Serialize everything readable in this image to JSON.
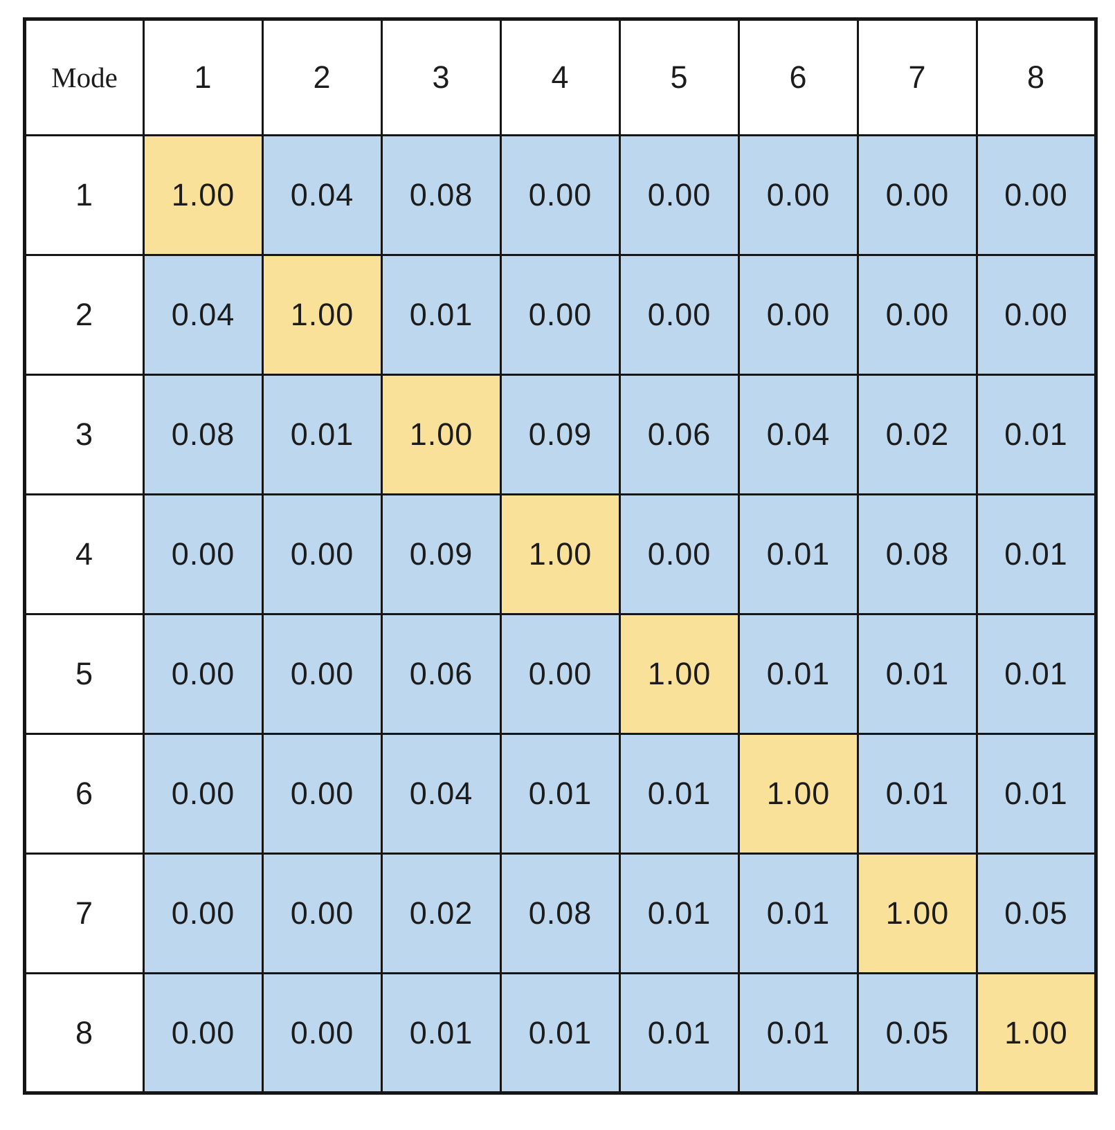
{
  "table": {
    "corner_label": "Mode",
    "column_headers": [
      "1",
      "2",
      "3",
      "4",
      "5",
      "6",
      "7",
      "8"
    ],
    "row_headers": [
      "1",
      "2",
      "3",
      "4",
      "5",
      "6",
      "7",
      "8"
    ],
    "cells": [
      [
        "1.00",
        "0.04",
        "0.08",
        "0.00",
        "0.00",
        "0.00",
        "0.00",
        "0.00"
      ],
      [
        "0.04",
        "1.00",
        "0.01",
        "0.00",
        "0.00",
        "0.00",
        "0.00",
        "0.00"
      ],
      [
        "0.08",
        "0.01",
        "1.00",
        "0.09",
        "0.06",
        "0.04",
        "0.02",
        "0.01"
      ],
      [
        "0.00",
        "0.00",
        "0.09",
        "1.00",
        "0.00",
        "0.01",
        "0.08",
        "0.01"
      ],
      [
        "0.00",
        "0.00",
        "0.06",
        "0.00",
        "1.00",
        "0.01",
        "0.01",
        "0.01"
      ],
      [
        "0.00",
        "0.00",
        "0.04",
        "0.01",
        "0.01",
        "1.00",
        "0.01",
        "0.01"
      ],
      [
        "0.00",
        "0.00",
        "0.02",
        "0.08",
        "0.01",
        "0.01",
        "1.00",
        "0.05"
      ],
      [
        "0.00",
        "0.00",
        "0.01",
        "0.01",
        "0.01",
        "0.01",
        "0.05",
        "1.00"
      ]
    ]
  },
  "colors": {
    "diagonal_cell": "#fae199",
    "off_diagonal_cell": "#bdd7ee",
    "border": "#161616",
    "text": "#1c1c1c",
    "background": "#ffffff"
  },
  "chart_data": {
    "type": "heatmap",
    "title": "",
    "xlabel": "Mode",
    "ylabel": "Mode",
    "x_tick_labels": [
      "1",
      "2",
      "3",
      "4",
      "5",
      "6",
      "7",
      "8"
    ],
    "y_tick_labels": [
      "1",
      "2",
      "3",
      "4",
      "5",
      "6",
      "7",
      "8"
    ],
    "corner_label": "Mode",
    "values": [
      [
        1.0,
        0.04,
        0.08,
        0.0,
        0.0,
        0.0,
        0.0,
        0.0
      ],
      [
        0.04,
        1.0,
        0.01,
        0.0,
        0.0,
        0.0,
        0.0,
        0.0
      ],
      [
        0.08,
        0.01,
        1.0,
        0.09,
        0.06,
        0.04,
        0.02,
        0.01
      ],
      [
        0.0,
        0.0,
        0.09,
        1.0,
        0.0,
        0.01,
        0.08,
        0.01
      ],
      [
        0.0,
        0.0,
        0.06,
        0.0,
        1.0,
        0.01,
        0.01,
        0.01
      ],
      [
        0.0,
        0.0,
        0.04,
        0.01,
        0.01,
        1.0,
        0.01,
        0.01
      ],
      [
        0.0,
        0.0,
        0.02,
        0.08,
        0.01,
        0.01,
        1.0,
        0.05
      ],
      [
        0.0,
        0.0,
        0.01,
        0.01,
        0.01,
        0.01,
        0.05,
        1.0
      ]
    ],
    "value_range": [
      0,
      1
    ],
    "legend": "none",
    "grid": "on",
    "highlight": "diagonal cells shaded yellow (1.00), off-diagonal cells shaded light blue"
  }
}
